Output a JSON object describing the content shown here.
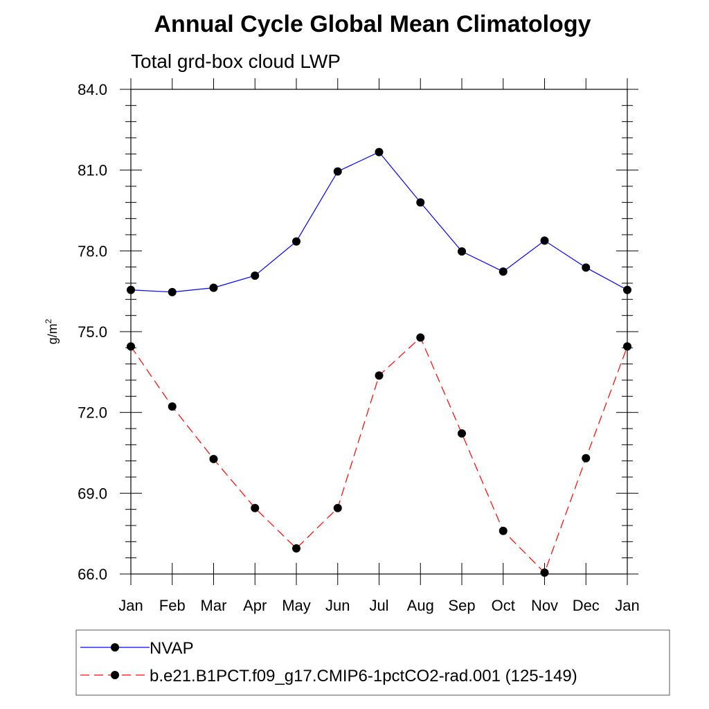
{
  "chart_data": {
    "type": "line",
    "title": "Annual Cycle Global Mean Climatology",
    "subtitle": "Total grd-box cloud LWP",
    "xlabel": "",
    "ylabel": "g/m",
    "ylabel_sup": "2",
    "ylim": [
      66.0,
      84.0
    ],
    "yticks": [
      "66.0",
      "69.0",
      "72.0",
      "75.0",
      "78.0",
      "81.0",
      "84.0"
    ],
    "categories": [
      "Jan",
      "Feb",
      "Mar",
      "Apr",
      "May",
      "Jun",
      "Jul",
      "Aug",
      "Sep",
      "Oct",
      "Nov",
      "Dec",
      "Jan"
    ],
    "series": [
      {
        "name": "NVAP",
        "color": "#0000ff",
        "dash": "solid",
        "values": [
          76.55,
          76.47,
          76.63,
          77.08,
          78.35,
          80.95,
          81.67,
          79.8,
          77.98,
          77.23,
          78.38,
          77.38,
          76.55
        ]
      },
      {
        "name": "b.e21.B1PCT.f09_g17.CMIP6-1pctCO2-rad.001 (125-149)",
        "color": "#ff0000",
        "dash": "dashed",
        "values": [
          74.45,
          72.22,
          70.27,
          68.45,
          66.95,
          68.45,
          73.37,
          74.78,
          71.22,
          67.6,
          66.05,
          70.3,
          74.45
        ]
      }
    ],
    "grid": false,
    "legend_position": "bottom"
  }
}
